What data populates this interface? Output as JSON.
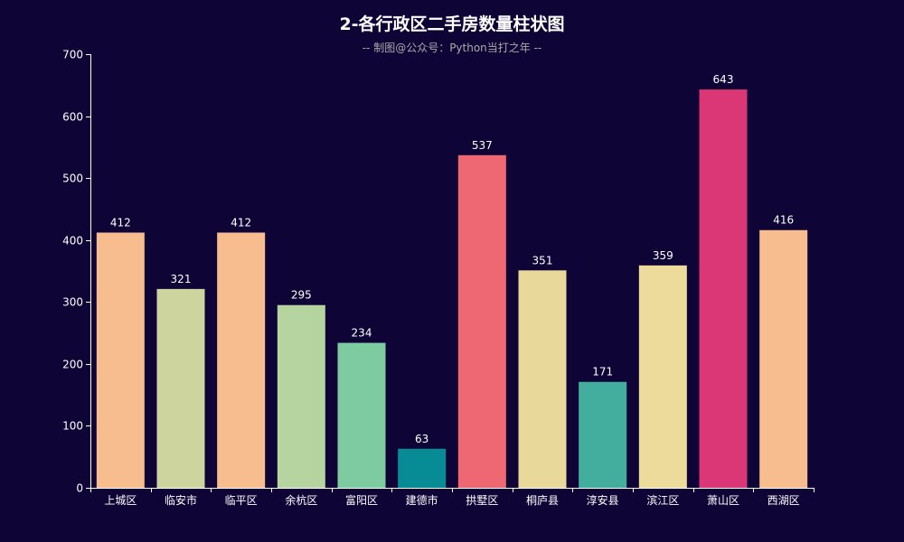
{
  "colors": {
    "background": "#0e0536",
    "axis": "#ffffff",
    "text": "#ffffff",
    "subtitle": "#aaaaaa",
    "palette": [
      "#f7bd8f",
      "#ced49e",
      "#f7bd8f",
      "#b5d4a0",
      "#7ecba2",
      "#078c95",
      "#ee6873",
      "#e8d99b",
      "#43ae9e",
      "#eddb9c",
      "#db3776",
      "#f7bd8f"
    ]
  },
  "chart_data": {
    "type": "bar",
    "title": "2-各行政区二手房数量柱状图",
    "subtitle": "-- 制图@公众号：Python当打之年 --",
    "categories": [
      "上城区",
      "临安市",
      "临平区",
      "余杭区",
      "富阳区",
      "建德市",
      "拱墅区",
      "桐庐县",
      "淳安县",
      "滨江区",
      "萧山区",
      "西湖区"
    ],
    "values": [
      412,
      321,
      412,
      295,
      234,
      63,
      537,
      351,
      171,
      359,
      643,
      416
    ],
    "ylim": [
      0,
      700
    ],
    "yticks": [
      0,
      100,
      200,
      300,
      400,
      500,
      600,
      700
    ],
    "xlabel": "",
    "ylabel": "",
    "grid": false,
    "data_labels": true
  }
}
